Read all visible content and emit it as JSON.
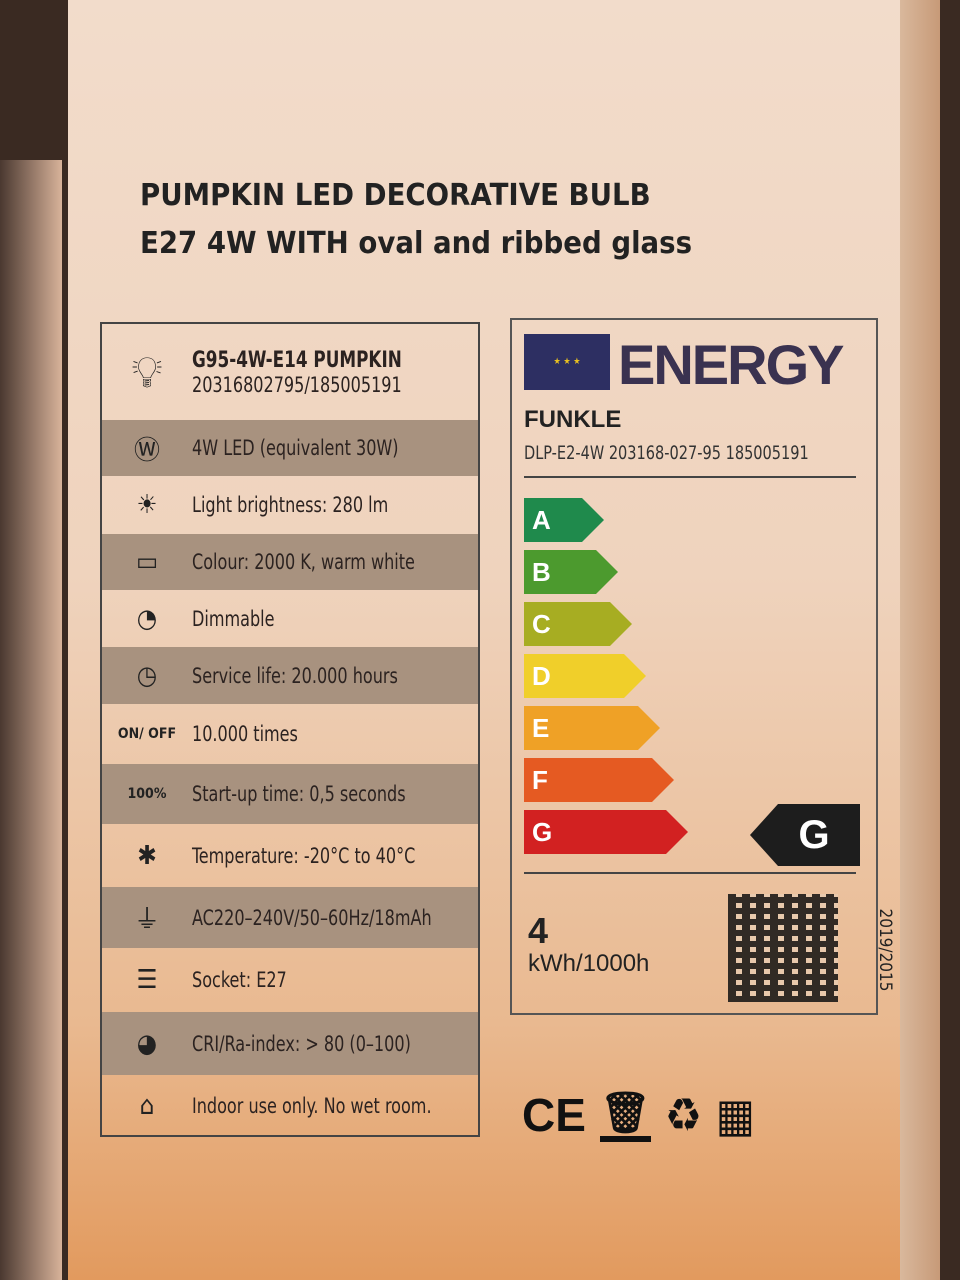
{
  "title": {
    "line1": "PUMPKIN LED DECORATIVE BULB",
    "line2": "E27  4W WITH oval and ribbed glass"
  },
  "spec_table": {
    "model": "G95-4W-E14 PUMPKIN",
    "codes": "20316802795/185005191",
    "rows": [
      {
        "icon": "watt-icon",
        "text": "4W LED (equivalent 30W)",
        "shaded": true
      },
      {
        "icon": "brightness-bulb-icon",
        "text": "Light brightness: 280 lm",
        "shaded": false
      },
      {
        "icon": "colour-temperature-icon",
        "text": "Colour: 2000 K, warm white",
        "shaded": true
      },
      {
        "icon": "dimmable-icon",
        "text": "Dimmable",
        "shaded": false
      },
      {
        "icon": "clock-icon",
        "text": "Service life: 20.000 hours",
        "shaded": true
      },
      {
        "icon": "on-off-icon",
        "icon_text": "ON/ OFF",
        "text": "10.000 times",
        "shaded": false
      },
      {
        "icon": "startup-icon",
        "icon_text": "100%",
        "text": "Start-up time: 0,5 seconds",
        "shaded": true
      },
      {
        "icon": "snowflake-icon",
        "text": "Temperature: -20°C to 40°C",
        "shaded": false
      },
      {
        "icon": "plug-icon",
        "text": "AC220–240V/50–60Hz/18mAh",
        "shaded": true
      },
      {
        "icon": "socket-icon",
        "text": "Socket: E27",
        "shaded": false
      },
      {
        "icon": "cri-icon",
        "text": "CRI/Ra-index: > 80 (0–100)",
        "shaded": true
      },
      {
        "icon": "house-icon",
        "text": "Indoor use only. No wet room.",
        "shaded": false
      }
    ]
  },
  "energy_label": {
    "heading": "ENERGY",
    "brand": "FUNKLE",
    "model": "DLP-E2-4W 203168-027-95 185005191",
    "classes": [
      {
        "letter": "A",
        "color": "#1f8a4c"
      },
      {
        "letter": "B",
        "color": "#4c9a2e"
      },
      {
        "letter": "C",
        "color": "#a7ad22"
      },
      {
        "letter": "D",
        "color": "#f0cf2a"
      },
      {
        "letter": "E",
        "color": "#efa126"
      },
      {
        "letter": "F",
        "color": "#e55a22"
      },
      {
        "letter": "G",
        "color": "#d22121"
      }
    ],
    "rating": "G",
    "consumption_value": "4",
    "consumption_unit": "kWh/1000h",
    "regulation": "2019/2015"
  },
  "marks": {
    "ce": "CE"
  }
}
